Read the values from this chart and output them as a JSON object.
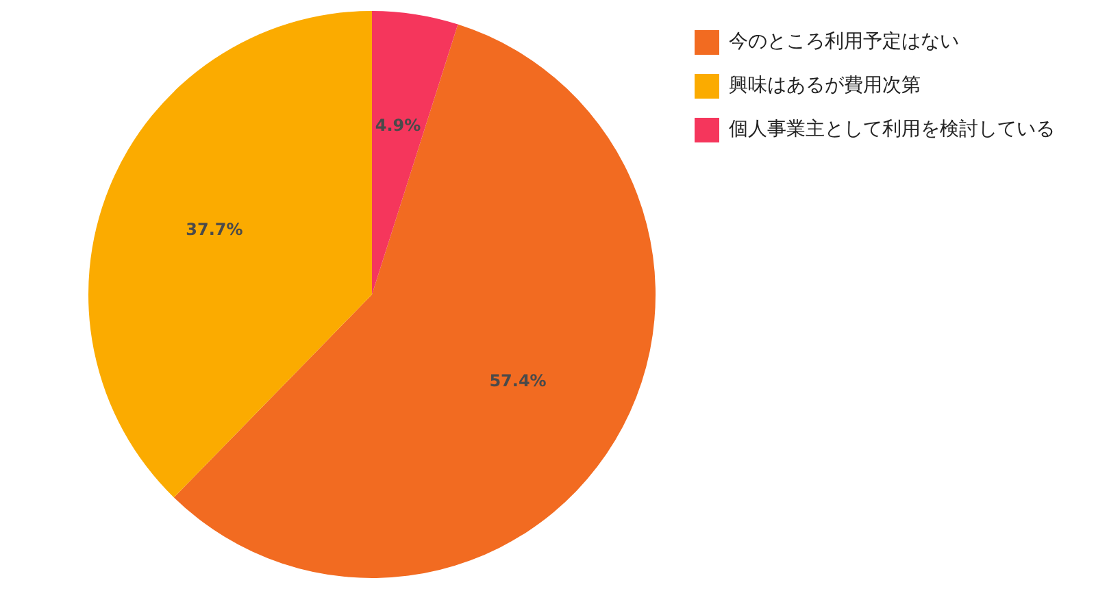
{
  "chart_data": {
    "type": "pie",
    "categories": [
      "今のところ利用予定はない",
      "興味はあるが費用次第",
      "個人事業主として利用を検討している"
    ],
    "values": [
      57.4,
      37.7,
      4.9
    ],
    "colors": [
      "#f26b21",
      "#fbab00",
      "#f5365c"
    ],
    "value_labels": [
      "57.4%",
      "37.7%",
      "4.9%"
    ],
    "legend": "right"
  }
}
